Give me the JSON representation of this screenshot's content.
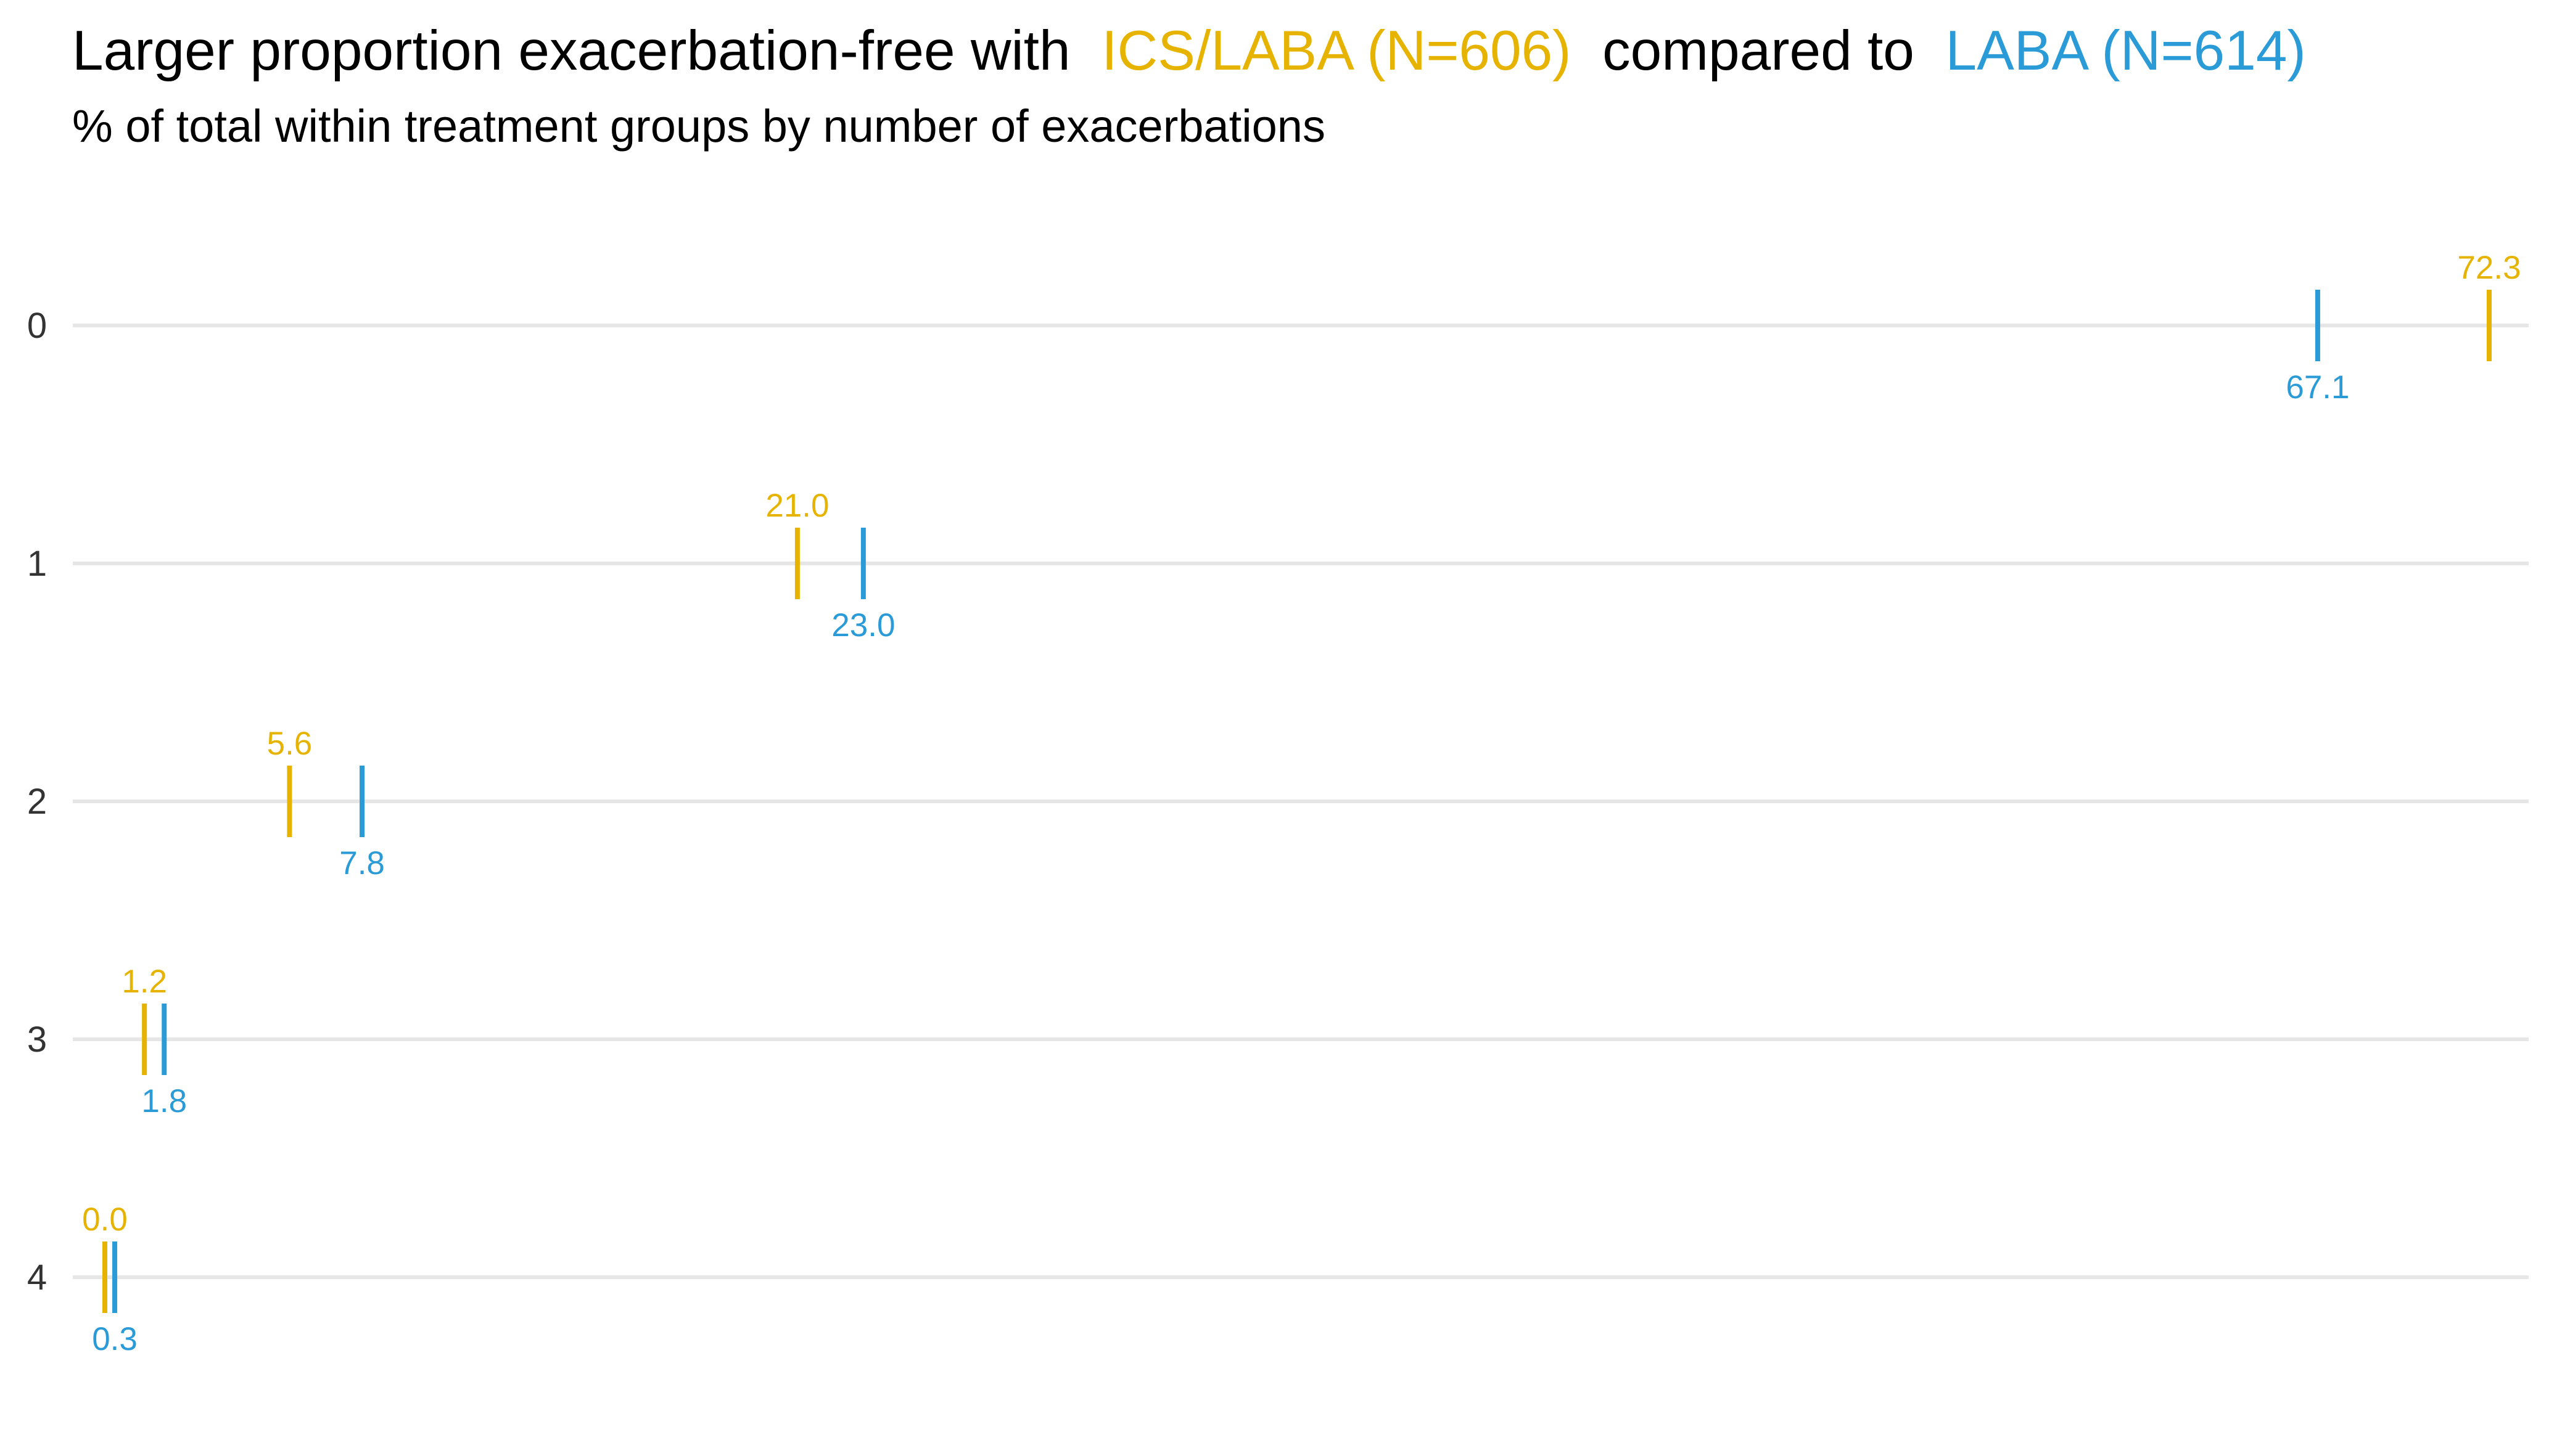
{
  "title": {
    "prefix": "Larger proportion exacerbation-free with",
    "ics_label": "ICS/LABA (N=606)",
    "middle": "compared to",
    "laba_label": "LABA (N=614)"
  },
  "subtitle": "% of total within treatment groups by number of exacerbations",
  "colors": {
    "ics_laba": "#E6B400",
    "laba": "#2B9BD7",
    "gridline": "#E6E6E6",
    "tick_label": "#333333"
  },
  "chart_data": {
    "type": "dot-strip",
    "title": "Larger proportion exacerbation-free with ICS/LABA (N=606) compared to LABA (N=614)",
    "subtitle": "% of total within treatment groups by number of exacerbations",
    "categories": [
      "0",
      "1",
      "2",
      "3",
      "4"
    ],
    "series": [
      {
        "name": "ICS/LABA (N=606)",
        "color": "#E6B400",
        "label_position": "above",
        "values": [
          72.3,
          21.0,
          5.6,
          1.2,
          0.0
        ]
      },
      {
        "name": "LABA (N=614)",
        "color": "#2B9BD7",
        "label_position": "below",
        "values": [
          67.1,
          23.0,
          7.8,
          1.8,
          0.3
        ]
      }
    ],
    "xlim": [
      0,
      72.3
    ],
    "x_axis_visible": false,
    "grid": "horizontal",
    "legend": "in-title"
  }
}
